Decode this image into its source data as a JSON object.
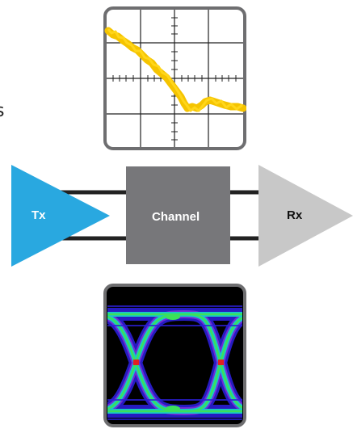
{
  "diagram": {
    "transmitter": {
      "label": "Tx",
      "color": "#29a8e0"
    },
    "channel": {
      "label": "Channel",
      "color": "#77777a"
    },
    "receiver": {
      "label": "Rx",
      "color": "#c8c8c8"
    },
    "wires_color": "#222222",
    "clipped_left_text": "s"
  },
  "step_response_scope": {
    "frame_color": "#6e6e70",
    "trace_color": "#f5c400",
    "background": "#ffffff"
  },
  "eye_diagram_scope": {
    "frame_color": "#6e6e70",
    "background": "#000000",
    "colors": [
      "#2b1fd6",
      "#7a2bd8",
      "#18c6c9",
      "#3be05a",
      "#e22020"
    ]
  }
}
